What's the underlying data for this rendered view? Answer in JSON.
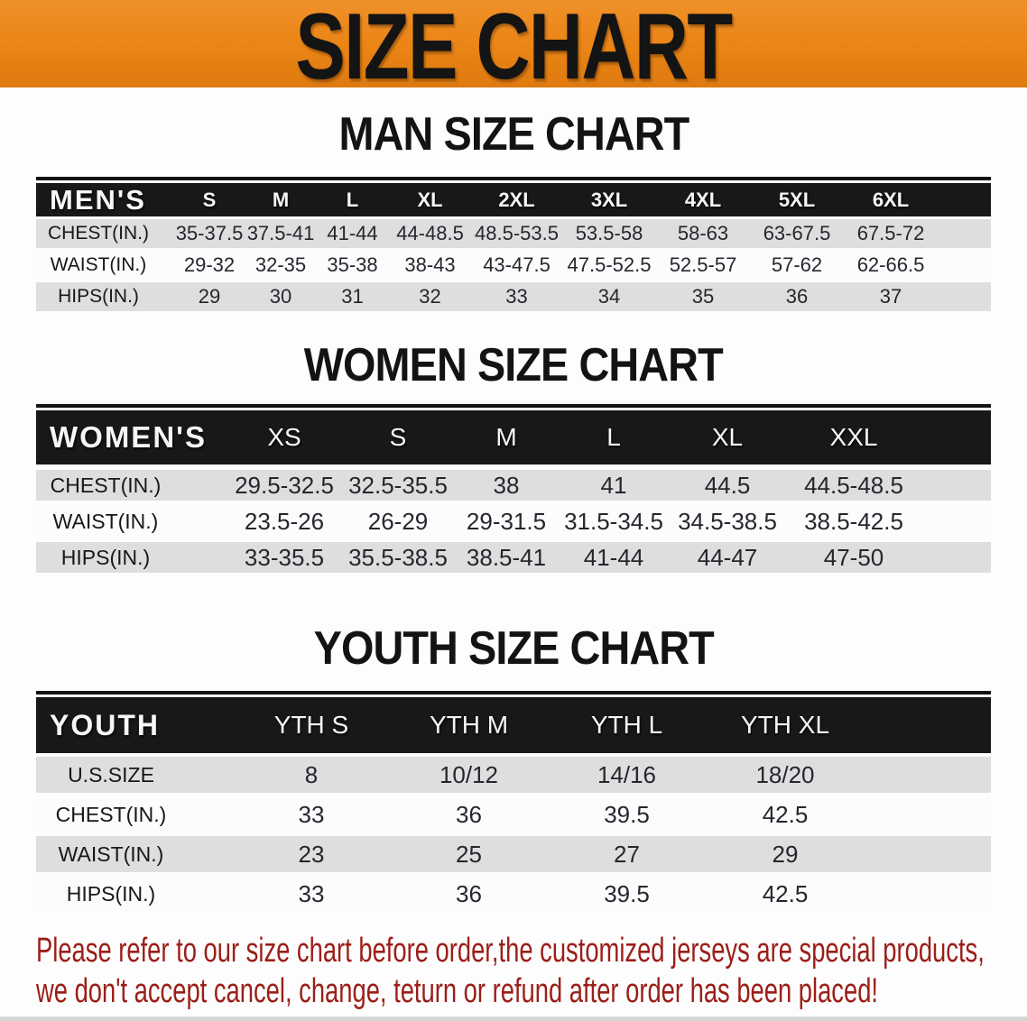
{
  "banner": {
    "title": "SIZE CHART",
    "bg_color": "#ec8718",
    "text_color": "#141414"
  },
  "sections": [
    {
      "title": "MAN SIZE CHART",
      "group_label": "MEN'S",
      "columns": [
        "S",
        "M",
        "L",
        "XL",
        "2XL",
        "3XL",
        "4XL",
        "5XL",
        "6XL"
      ],
      "rows": [
        {
          "label": "CHEST(IN.)",
          "values": [
            "35-37.5",
            "37.5-41",
            "41-44",
            "44-48.5",
            "48.5-53.5",
            "53.5-58",
            "58-63",
            "63-67.5",
            "67.5-72"
          ]
        },
        {
          "label": "WAIST(IN.)",
          "values": [
            "29-32",
            "32-35",
            "35-38",
            "38-43",
            "43-47.5",
            "47.5-52.5",
            "52.5-57",
            "57-62",
            "62-66.5"
          ]
        },
        {
          "label": "HIPS(IN.)",
          "values": [
            "29",
            "30",
            "31",
            "32",
            "33",
            "34",
            "35",
            "36",
            "37"
          ]
        }
      ]
    },
    {
      "title": "WOMEN SIZE CHART",
      "group_label": "WOMEN'S",
      "columns": [
        "XS",
        "S",
        "M",
        "L",
        "XL",
        "XXL"
      ],
      "rows": [
        {
          "label": "CHEST(IN.)",
          "values": [
            "29.5-32.5",
            "32.5-35.5",
            "38",
            "41",
            "44.5",
            "44.5-48.5"
          ]
        },
        {
          "label": "WAIST(IN.)",
          "values": [
            "23.5-26",
            "26-29",
            "29-31.5",
            "31.5-34.5",
            "34.5-38.5",
            "38.5-42.5"
          ]
        },
        {
          "label": "HIPS(IN.)",
          "values": [
            "33-35.5",
            "35.5-38.5",
            "38.5-41",
            "41-44",
            "44-47",
            "47-50"
          ]
        }
      ]
    },
    {
      "title": "YOUTH SIZE CHART",
      "group_label": "YOUTH",
      "columns": [
        "YTH S",
        "YTH M",
        "YTH L",
        "YTH XL"
      ],
      "rows": [
        {
          "label": "U.S.SIZE",
          "values": [
            "8",
            "10/12",
            "14/16",
            "18/20"
          ]
        },
        {
          "label": "CHEST(IN.)",
          "values": [
            "33",
            "36",
            "39.5",
            "42.5"
          ]
        },
        {
          "label": "WAIST(IN.)",
          "values": [
            "23",
            "25",
            "27",
            "29"
          ]
        },
        {
          "label": "HIPS(IN.)",
          "values": [
            "33",
            "36",
            "39.5",
            "42.5"
          ]
        }
      ]
    }
  ],
  "footnote": {
    "line1": "Please refer to our size chart before order,the customized jerseys are special products,",
    "line2": "we don't accept cancel, change, teturn or refund after order has been placed!",
    "color": "#9b1e18"
  }
}
